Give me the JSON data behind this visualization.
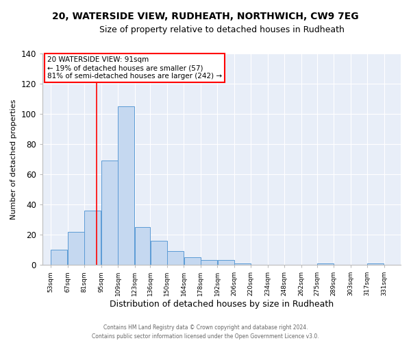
{
  "title": "20, WATERSIDE VIEW, RUDHEATH, NORTHWICH, CW9 7EG",
  "subtitle": "Size of property relative to detached houses in Rudheath",
  "xlabel": "Distribution of detached houses by size in Rudheath",
  "ylabel": "Number of detached properties",
  "bar_left_edges": [
    53,
    67,
    81,
    95,
    109,
    123,
    136,
    150,
    164,
    178,
    192,
    206,
    220,
    234,
    248,
    262,
    275,
    289,
    303,
    317
  ],
  "bar_widths": [
    14,
    14,
    14,
    14,
    14,
    13,
    14,
    14,
    14,
    14,
    14,
    14,
    14,
    14,
    14,
    13,
    14,
    14,
    14,
    14
  ],
  "bar_heights": [
    10,
    22,
    36,
    69,
    105,
    25,
    16,
    9,
    5,
    3,
    3,
    1,
    0,
    0,
    0,
    0,
    1,
    0,
    0,
    1
  ],
  "tick_labels": [
    "53sqm",
    "67sqm",
    "81sqm",
    "95sqm",
    "109sqm",
    "123sqm",
    "136sqm",
    "150sqm",
    "164sqm",
    "178sqm",
    "192sqm",
    "206sqm",
    "220sqm",
    "234sqm",
    "248sqm",
    "262sqm",
    "275sqm",
    "289sqm",
    "303sqm",
    "317sqm",
    "331sqm"
  ],
  "tick_positions": [
    53,
    67,
    81,
    95,
    109,
    123,
    136,
    150,
    164,
    178,
    192,
    206,
    220,
    234,
    248,
    262,
    275,
    289,
    303,
    317,
    331
  ],
  "bar_color": "#c5d8f0",
  "bar_edge_color": "#5b9bd5",
  "vline_x": 91,
  "vline_color": "red",
  "ylim": [
    0,
    140
  ],
  "xlim": [
    46,
    345
  ],
  "annotation_title": "20 WATERSIDE VIEW: 91sqm",
  "annotation_line1": "← 19% of detached houses are smaller (57)",
  "annotation_line2": "81% of semi-detached houses are larger (242) →",
  "footer1": "Contains HM Land Registry data © Crown copyright and database right 2024.",
  "footer2": "Contains public sector information licensed under the Open Government Licence v3.0.",
  "fig_bg_color": "#ffffff",
  "plot_bg_color": "#e8eef8",
  "grid_color": "#ffffff",
  "title_fontsize": 10,
  "subtitle_fontsize": 9,
  "ylabel_fontsize": 8,
  "xlabel_fontsize": 9
}
